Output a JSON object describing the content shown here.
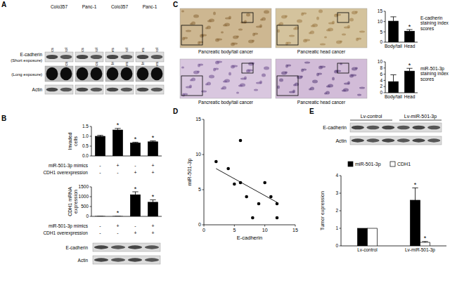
{
  "panels": {
    "A": {
      "label": "A",
      "cell_lines": [
        "Colo357",
        "Panc-1",
        "Colo357",
        "Panc-1"
      ],
      "lanes": [
        "Mimics",
        "Mimics control",
        "Mimics",
        "Mimics control",
        "Inhibitors",
        "Inhibitors control",
        "Inhibitors",
        "Inhibitors control"
      ],
      "rows": [
        "E-cadherin",
        "(Short exposure)",
        "(Long exposure)",
        "Actin"
      ]
    },
    "B": {
      "label": "B",
      "conditions": [
        {
          "name": "miR-501-3p mimics",
          "signs": [
            "-",
            "+",
            "-",
            "+"
          ]
        },
        {
          "name": "CDH1 overexpression",
          "signs": [
            "-",
            "-",
            "+",
            "+"
          ]
        }
      ],
      "blot_rows": [
        "E-cadherin",
        "Actin"
      ]
    },
    "C": {
      "label": "C",
      "images": [
        "Pancreatic body/tail cancer",
        "Pancreatic head cancer",
        "Pancreatic body/tail cancer",
        "Pancreatic head cancer"
      ]
    },
    "D": {
      "label": "D"
    },
    "E": {
      "label": "E",
      "lanes": [
        "Lv-control",
        "Lv-miR-501-3p"
      ],
      "blot_rows": [
        "E-cadherin",
        "Actin"
      ]
    }
  },
  "chart_data": [
    {
      "type": "bar",
      "y_label": "Invaded cells",
      "categories": [
        null,
        null,
        null,
        null
      ],
      "values": [
        1.0,
        1.32,
        0.66,
        0.72
      ],
      "errors": [
        0.05,
        0.08,
        0.04,
        0.05
      ],
      "significance": [
        null,
        "*",
        "*",
        "*"
      ],
      "color": "#000000",
      "ylim": [
        0,
        1.5
      ],
      "yticks": [
        {
          "value": 0,
          "label": "0.0"
        },
        {
          "value": 0.5,
          "label": "0.5"
        },
        {
          "value": 1,
          "label": "1.0"
        },
        {
          "value": 1.5,
          "label": "1.5"
        }
      ]
    },
    {
      "type": "bar",
      "y_label": "CDH1 mRNA expression",
      "categories": [
        null,
        null,
        null,
        null
      ],
      "values": [
        1,
        0.15,
        1100,
        720
      ],
      "errors": [
        0.3,
        0.05,
        150,
        120
      ],
      "significance": [
        null,
        "*",
        "*",
        "*"
      ],
      "color": "#000000",
      "ylim": [
        0,
        1500
      ],
      "yticks": [
        0,
        500,
        1000,
        1500
      ]
    },
    {
      "type": "bar",
      "y_label": "E-cadherin staining index scores",
      "categories": [
        "Body/tail",
        "Head"
      ],
      "values": [
        10.2,
        5.3
      ],
      "errors": [
        2.1,
        0.8
      ],
      "significance": [
        null,
        "*"
      ],
      "color": "#000000",
      "ylim": [
        0,
        15
      ],
      "yticks": [
        0,
        5,
        10,
        15
      ]
    },
    {
      "type": "bar",
      "y_label": "miR-501-3p staining index scores",
      "categories": [
        "Body/tail",
        "Head"
      ],
      "values": [
        3.6,
        7.0
      ],
      "errors": [
        2.2,
        0.9
      ],
      "significance": [
        null,
        "*"
      ],
      "color": "#000000",
      "ylim": [
        0,
        10
      ],
      "yticks": [
        0,
        2,
        4,
        6,
        8,
        10
      ]
    },
    {
      "type": "scatter",
      "x_label": "E-cadherin",
      "y_label": "miR-501-3p",
      "x": [
        2,
        4,
        5,
        6,
        6,
        7,
        8,
        9,
        10,
        11,
        12,
        12
      ],
      "y": [
        9,
        8,
        5.8,
        12,
        6,
        4,
        1,
        3,
        6,
        4,
        1,
        3
      ],
      "fit_line": {
        "x": [
          2,
          12
        ],
        "y": [
          8.0,
          3.2
        ]
      },
      "color": "#000000",
      "xlim": [
        0,
        15
      ],
      "ylim": [
        0,
        15
      ],
      "xticks": [
        0,
        5,
        10,
        15
      ],
      "yticks": [
        0,
        5,
        10,
        15
      ]
    },
    {
      "type": "bar",
      "y_label": "Tumor expression",
      "categories": [
        "Lv-control",
        "Lv-miR-501-3p"
      ],
      "series": [
        {
          "name": "miR-501-3p",
          "color": "#000000",
          "values": [
            1,
            2.6
          ],
          "errors": [
            null,
            0.7
          ],
          "significance": [
            null,
            "*"
          ]
        },
        {
          "name": "CDH1",
          "color": "#ffffff",
          "values": [
            1,
            0.2
          ],
          "errors": [
            null,
            0.05
          ],
          "significance": [
            null,
            "*"
          ]
        }
      ],
      "legend": "top",
      "ylim": [
        0,
        4
      ],
      "yticks": [
        0,
        1,
        2,
        3,
        4
      ]
    }
  ]
}
